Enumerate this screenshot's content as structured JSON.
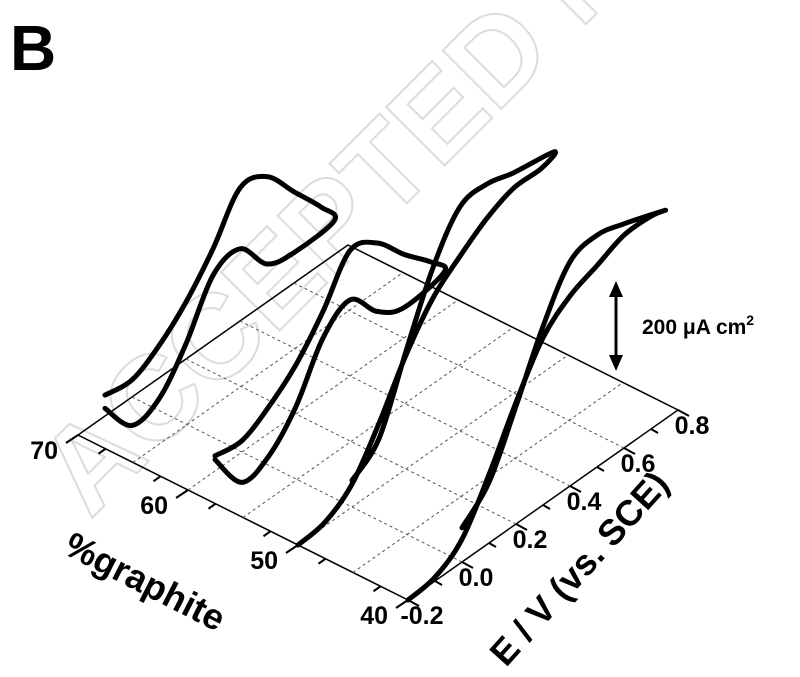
{
  "panel_label": "B",
  "watermark": "ACCEPTED MA",
  "scale_bar": {
    "label": "200 μA cm",
    "superscript": "2"
  },
  "chart_data": {
    "type": "line",
    "xlabel": "%graphite",
    "ylabel": "E / V (vs. SCE)",
    "x_ticks": [
      "70",
      "60",
      "50",
      "40"
    ],
    "y_ticks": [
      "-0.2",
      "0.0",
      "0.2",
      "0.4",
      "0.6",
      "0.8"
    ],
    "xlim": [
      40,
      70
    ],
    "ylim": [
      -0.2,
      0.8
    ],
    "grid": true,
    "series": [
      {
        "graphite": 70,
        "E": [
          -0.1,
          0.0,
          0.1,
          0.2,
          0.3,
          0.4,
          0.5,
          0.6,
          0.7,
          0.75,
          0.6,
          0.5,
          0.4,
          0.3,
          0.2,
          0.1,
          0.0,
          -0.1
        ],
        "j": [
          0.55,
          0.45,
          0.85,
          1.5,
          2.4,
          3.5,
          3.3,
          2.4,
          1.5,
          0.9,
          0.8,
          1.0,
          1.9,
          1.7,
          0.4,
          -0.55,
          -0.75,
          0.2
        ]
      },
      {
        "graphite": 60,
        "E": [
          -0.1,
          0.0,
          0.1,
          0.2,
          0.3,
          0.4,
          0.5,
          0.6,
          0.7,
          0.75,
          0.6,
          0.5,
          0.4,
          0.3,
          0.2,
          0.1,
          0.0,
          -0.1
        ],
        "j": [
          0.4,
          0.3,
          0.7,
          1.3,
          2.2,
          3.3,
          3.0,
          2.2,
          1.5,
          1.0,
          0.8,
          1.2,
          2.0,
          1.5,
          0.2,
          -0.6,
          -0.8,
          0.3
        ]
      },
      {
        "graphite": 50,
        "E": [
          -0.2,
          -0.1,
          0.0,
          0.1,
          0.2,
          0.3,
          0.4,
          0.5,
          0.6,
          0.7,
          0.75,
          0.6,
          0.5,
          0.4,
          0.3,
          0.2,
          0.1,
          0.0
        ],
        "j": [
          0.0,
          0.1,
          0.6,
          1.7,
          3.0,
          4.0,
          4.6,
          5.1,
          5.4,
          5.4,
          5.6,
          5.8,
          6.0,
          5.9,
          4.8,
          3.1,
          1.3,
          0.7
        ]
      },
      {
        "graphite": 40,
        "E": [
          -0.2,
          -0.1,
          0.0,
          0.1,
          0.2,
          0.3,
          0.4,
          0.5,
          0.6,
          0.7,
          0.75,
          0.6,
          0.5,
          0.4,
          0.3,
          0.2,
          0.1,
          0.0
        ],
        "j": [
          0.0,
          0.1,
          0.6,
          1.8,
          3.2,
          4.4,
          5.0,
          5.3,
          5.6,
          5.6,
          5.5,
          5.9,
          6.1,
          5.9,
          4.7,
          3.1,
          1.6,
          0.9
        ]
      }
    ]
  }
}
